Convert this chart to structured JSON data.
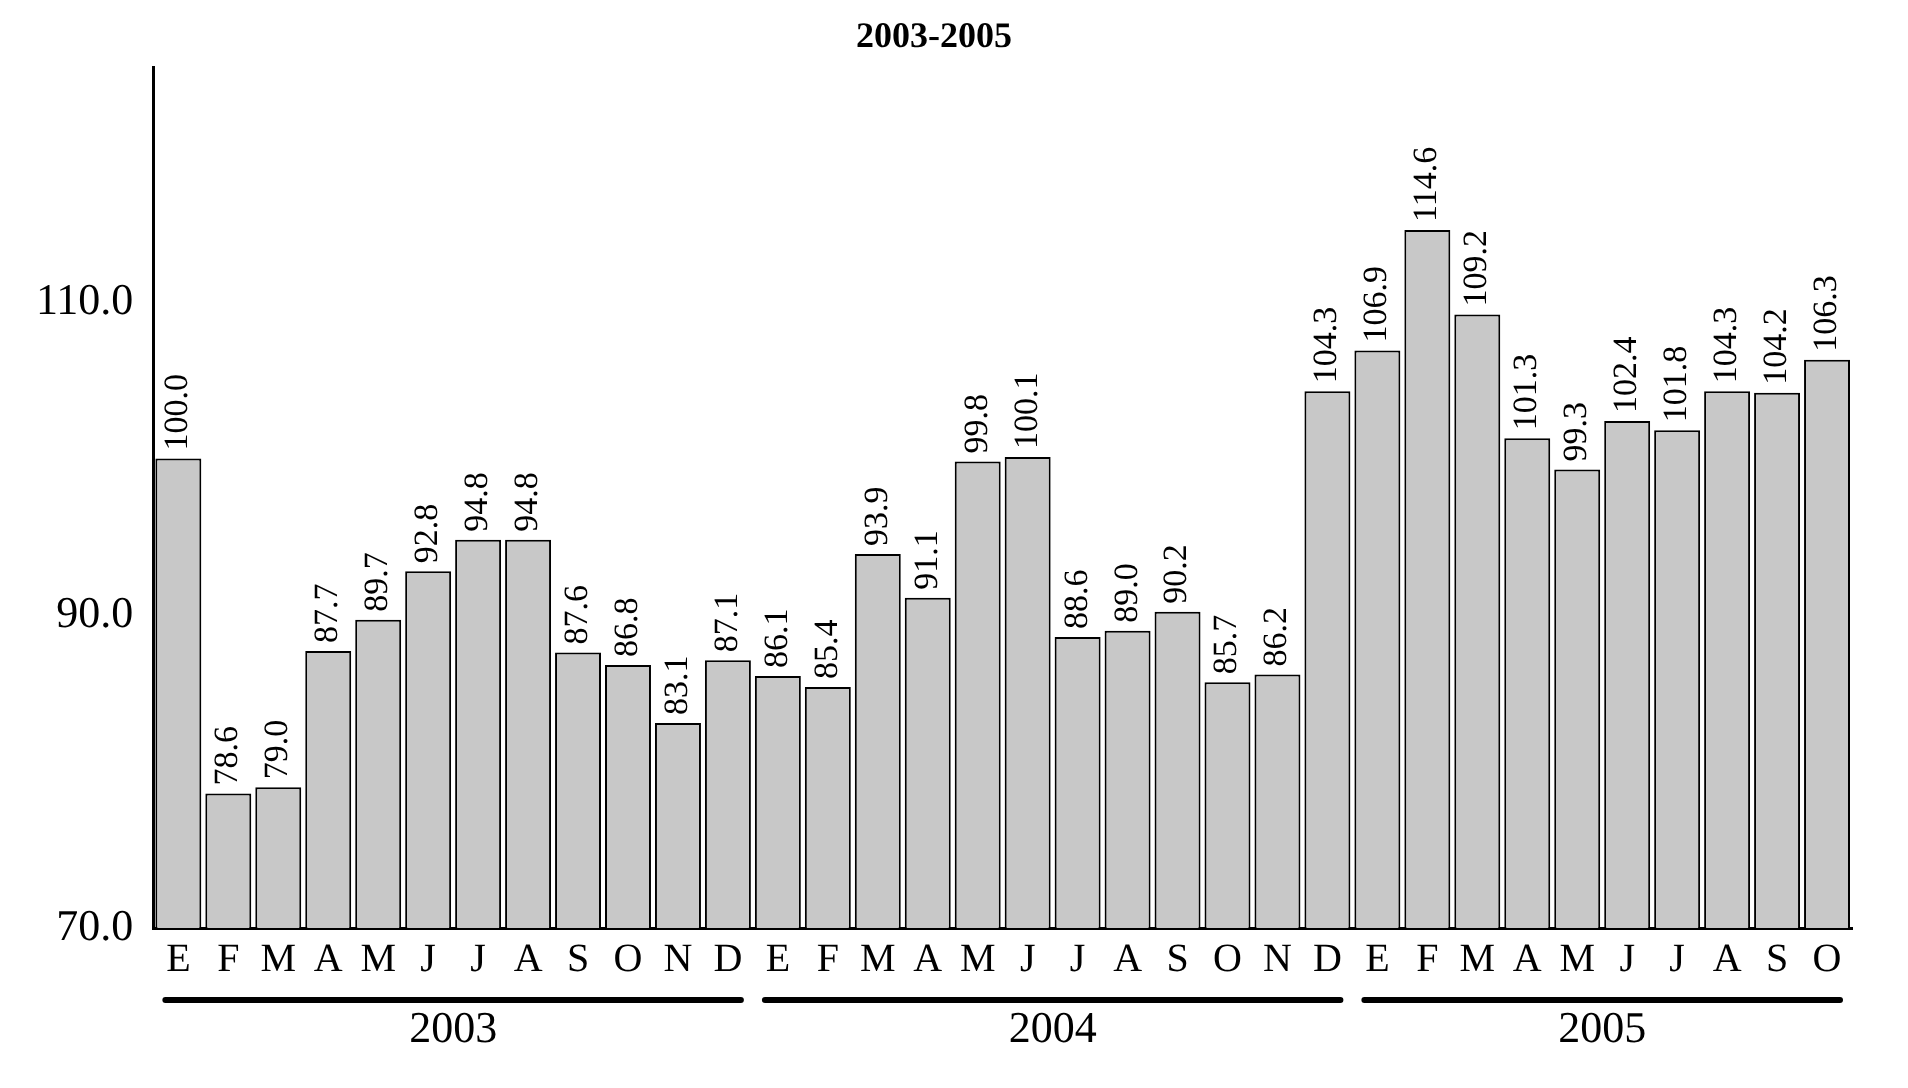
{
  "chart_data": {
    "type": "bar",
    "title": "2003-2005",
    "categories": [
      "E",
      "F",
      "M",
      "A",
      "M",
      "J",
      "J",
      "A",
      "S",
      "O",
      "N",
      "D",
      "E",
      "F",
      "M",
      "A",
      "M",
      "J",
      "J",
      "A",
      "S",
      "O",
      "N",
      "D",
      "E",
      "F",
      "M",
      "A",
      "M",
      "J",
      "J",
      "A",
      "S",
      "O"
    ],
    "values": [
      100.0,
      78.6,
      79.0,
      87.7,
      89.7,
      92.8,
      94.8,
      94.8,
      87.6,
      86.8,
      83.1,
      87.1,
      86.1,
      85.4,
      93.9,
      91.1,
      99.8,
      100.1,
      88.6,
      89.0,
      90.2,
      85.7,
      86.2,
      104.3,
      106.9,
      114.6,
      109.2,
      101.3,
      99.3,
      102.4,
      101.8,
      104.3,
      104.2,
      106.3
    ],
    "color": "#c8c8c8",
    "ylim": [
      70,
      125
    ],
    "yticks": [
      {
        "value": 70,
        "label": "70.0"
      },
      {
        "value": 90,
        "label": "90.0"
      },
      {
        "value": 110,
        "label": "110.0"
      }
    ],
    "annotations": [
      "2003",
      "2004",
      "2005"
    ],
    "value_labels": [
      "100.0",
      "78.6",
      "79.0",
      "87.7",
      "89.7",
      "92.8",
      "94.8",
      "94.8",
      "87.6",
      "86.8",
      "83.1",
      "87.1",
      "86.1",
      "85.4",
      "93.9",
      "91.1",
      "99.8",
      "100.1",
      "88.6",
      "89.0",
      "90.2",
      "85.7",
      "86.2",
      "104.3",
      "106.9",
      "114.6",
      "109.2",
      "101.3",
      "99.3",
      "102.4",
      "101.8",
      "104.3",
      "104.2",
      "106.3"
    ],
    "grid": false,
    "legend": false
  }
}
